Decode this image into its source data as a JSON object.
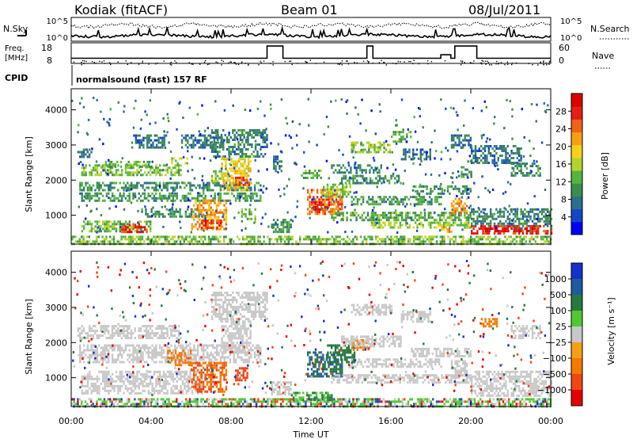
{
  "header": {
    "station": "Kodiak (fitACF)",
    "beam": "Beam 01",
    "date": "08/Jul/2011"
  },
  "chart_data": [
    {
      "type": "line",
      "panel": "noise",
      "left_label": "N.Sky",
      "right_label": "N.Search",
      "left_ticks": [
        "10^5",
        "10^0"
      ],
      "right_ticks": [
        "10^5",
        "10^0"
      ],
      "log_scale": true
    },
    {
      "type": "line",
      "panel": "frequency-nave",
      "left_label_line1": "Freq.",
      "left_label_line2": "[MHz]",
      "right_label": "Nave",
      "left_ticks": [
        18,
        8
      ],
      "right_ticks": [
        60,
        0
      ],
      "freq_ylim": [
        8,
        18
      ],
      "nave_ylim": [
        0,
        60
      ],
      "freq_high_intervals_h": [
        [
          9.8,
          10.6
        ],
        [
          14.8,
          15.1
        ],
        [
          18.5,
          19.0
        ],
        [
          19.2,
          20.3
        ]
      ]
    },
    {
      "type": "table",
      "panel": "cpid",
      "label": "CPID",
      "program": "normalsound (fast) 157 RF"
    },
    {
      "type": "heatmap",
      "panel": "power",
      "ylabel": "Slant Range [km]",
      "yticks": [
        1000,
        2000,
        3000,
        4000
      ],
      "ylim": [
        180,
        4600
      ],
      "xlim_h": [
        0,
        24
      ],
      "colorbar": {
        "label": "Power [dB]",
        "ticks": [
          4,
          8,
          12,
          16,
          20,
          24,
          28
        ],
        "range": [
          0,
          32
        ],
        "colors": [
          "#0000ff",
          "#1446c8",
          "#2d6e8c",
          "#3c8c4b",
          "#55b43c",
          "#b4d22d",
          "#f5d219",
          "#f5a014",
          "#f06414",
          "#e61e14",
          "#dc0000"
        ]
      },
      "echo_regions": [
        {
          "t": [
            0.0,
            24.0
          ],
          "r": [
            180,
            420
          ],
          "v": 14
        },
        {
          "t": [
            0.3,
            1.0
          ],
          "r": [
            2650,
            2900
          ],
          "v": 8
        },
        {
          "t": [
            0.5,
            5.5
          ],
          "r": [
            2150,
            2450
          ],
          "v": 14
        },
        {
          "t": [
            1.5,
            4.0
          ],
          "r": [
            2350,
            2550
          ],
          "v": 12
        },
        {
          "t": [
            0.4,
            9.5
          ],
          "r": [
            1700,
            1950
          ],
          "v": 10
        },
        {
          "t": [
            0.4,
            9.5
          ],
          "r": [
            1400,
            1650
          ],
          "v": 11
        },
        {
          "t": [
            0.5,
            4.0
          ],
          "r": [
            550,
            850
          ],
          "v": 14
        },
        {
          "t": [
            2.5,
            3.8
          ],
          "r": [
            520,
            760
          ],
          "v": 27
        },
        {
          "t": [
            3.5,
            6.5
          ],
          "r": [
            950,
            1200
          ],
          "v": 10
        },
        {
          "t": [
            3.0,
            4.8
          ],
          "r": [
            2900,
            3300
          ],
          "v": 8
        },
        {
          "t": [
            5.0,
            5.8
          ],
          "r": [
            2500,
            2650
          ],
          "v": 16
        },
        {
          "t": [
            5.5,
            7.5
          ],
          "r": [
            2900,
            3300
          ],
          "v": 8
        },
        {
          "t": [
            6.0,
            7.8
          ],
          "r": [
            600,
            1450
          ],
          "v": 22
        },
        {
          "t": [
            6.5,
            7.5
          ],
          "r": [
            620,
            880
          ],
          "v": 27
        },
        {
          "t": [
            7.0,
            7.6
          ],
          "r": [
            2000,
            2350
          ],
          "v": 16
        },
        {
          "t": [
            7.5,
            9.0
          ],
          "r": [
            1750,
            2700
          ],
          "v": 19
        },
        {
          "t": [
            8.2,
            8.9
          ],
          "r": [
            1850,
            2100
          ],
          "v": 26
        },
        {
          "t": [
            7.0,
            9.8
          ],
          "r": [
            2700,
            3450
          ],
          "v": 9
        },
        {
          "t": [
            8.5,
            9.2
          ],
          "r": [
            850,
            1200
          ],
          "v": 14
        },
        {
          "t": [
            10.1,
            10.5
          ],
          "r": [
            2250,
            2700
          ],
          "v": 8
        },
        {
          "t": [
            10.0,
            11.0
          ],
          "r": [
            500,
            900
          ],
          "v": 10
        },
        {
          "t": [
            11.5,
            12.5
          ],
          "r": [
            2050,
            2300
          ],
          "v": 12
        },
        {
          "t": [
            11.8,
            13.6
          ],
          "r": [
            1050,
            1750
          ],
          "v": 24
        },
        {
          "t": [
            12.0,
            13.0
          ],
          "r": [
            1100,
            1400
          ],
          "v": 28
        },
        {
          "t": [
            12.5,
            14.0
          ],
          "r": [
            1500,
            1900
          ],
          "v": 15
        },
        {
          "t": [
            13.5,
            16.5
          ],
          "r": [
            1900,
            2150
          ],
          "v": 10
        },
        {
          "t": [
            13.0,
            15.5
          ],
          "r": [
            2200,
            2450
          ],
          "v": 9
        },
        {
          "t": [
            14.0,
            16.0
          ],
          "r": [
            2800,
            3100
          ],
          "v": 15
        },
        {
          "t": [
            16.0,
            17.0
          ],
          "r": [
            3100,
            3400
          ],
          "v": 12
        },
        {
          "t": [
            16.5,
            18.0
          ],
          "r": [
            2600,
            2900
          ],
          "v": 8
        },
        {
          "t": [
            14.0,
            18.5
          ],
          "r": [
            1300,
            1550
          ],
          "v": 11
        },
        {
          "t": [
            13.0,
            20.0
          ],
          "r": [
            850,
            1100
          ],
          "v": 12
        },
        {
          "t": [
            17.0,
            20.0
          ],
          "r": [
            1600,
            1850
          ],
          "v": 10
        },
        {
          "t": [
            15.0,
            20.0
          ],
          "r": [
            620,
            820
          ],
          "v": 15
        },
        {
          "t": [
            18.5,
            19.0
          ],
          "r": [
            520,
            700
          ],
          "v": 22
        },
        {
          "t": [
            19.0,
            19.8
          ],
          "r": [
            1050,
            1500
          ],
          "v": 22
        },
        {
          "t": [
            19.5,
            20.0
          ],
          "r": [
            2100,
            2400
          ],
          "v": 10
        },
        {
          "t": [
            19.0,
            20.0
          ],
          "r": [
            2900,
            3300
          ],
          "v": 7
        },
        {
          "t": [
            20.0,
            22.5
          ],
          "r": [
            2500,
            3000
          ],
          "v": 8
        },
        {
          "t": [
            22.0,
            23.5
          ],
          "r": [
            2150,
            2500
          ],
          "v": 10
        },
        {
          "t": [
            20.0,
            24.0
          ],
          "r": [
            700,
            1200
          ],
          "v": 9
        },
        {
          "t": [
            20.0,
            24.0
          ],
          "r": [
            500,
            720
          ],
          "v": 28
        },
        {
          "t": [
            20.6,
            22.8
          ],
          "r": [
            550,
            650
          ],
          "v": 31
        }
      ]
    },
    {
      "type": "heatmap",
      "panel": "velocity",
      "ylabel": "Slant Range [km]",
      "yticks": [
        1000,
        2000,
        3000,
        4000
      ],
      "ylim": [
        180,
        4600
      ],
      "xlim_h": [
        0,
        24
      ],
      "xticks": [
        "00:00",
        "04:00",
        "08:00",
        "12:00",
        "16:00",
        "20:00",
        "00:00"
      ],
      "xlabel": "Time UT",
      "colorbar": {
        "label": "Velocity [m s⁻¹]",
        "ticks": [
          "1000",
          "500",
          "100",
          "25",
          "−25",
          "−100",
          "−500",
          "−1000"
        ],
        "colors": [
          "#1432c8",
          "#1e5aa0",
          "#287840",
          "#50c832",
          "#c8c8c8",
          "#f5a014",
          "#f57800",
          "#f04614",
          "#e60000"
        ]
      },
      "echo_regions": [
        {
          "t": [
            0.0,
            24.0
          ],
          "r": [
            180,
            420
          ],
          "v": 30
        },
        {
          "t": [
            0.3,
            5.5
          ],
          "r": [
            2150,
            2500
          ],
          "v": 0
        },
        {
          "t": [
            0.4,
            9.5
          ],
          "r": [
            1450,
            1950
          ],
          "v": 0
        },
        {
          "t": [
            0.5,
            6.5
          ],
          "r": [
            550,
            1200
          ],
          "v": 0
        },
        {
          "t": [
            7.0,
            9.8
          ],
          "r": [
            2700,
            3450
          ],
          "v": 0
        },
        {
          "t": [
            4.8,
            6.0
          ],
          "r": [
            1350,
            1800
          ],
          "v": -180
        },
        {
          "t": [
            6.0,
            7.8
          ],
          "r": [
            600,
            1450
          ],
          "v": -300
        },
        {
          "t": [
            7.5,
            9.0
          ],
          "r": [
            1750,
            2700
          ],
          "v": 0
        },
        {
          "t": [
            8.2,
            8.8
          ],
          "r": [
            900,
            1300
          ],
          "v": -400
        },
        {
          "t": [
            10.0,
            11.0
          ],
          "r": [
            500,
            900
          ],
          "v": 0
        },
        {
          "t": [
            11.8,
            13.6
          ],
          "r": [
            1050,
            1750
          ],
          "v": 300
        },
        {
          "t": [
            12.8,
            14.2
          ],
          "r": [
            1450,
            1950
          ],
          "v": 200
        },
        {
          "t": [
            14.0,
            14.8
          ],
          "r": [
            1800,
            2100
          ],
          "v": -150
        },
        {
          "t": [
            13.5,
            16.5
          ],
          "r": [
            1900,
            2200
          ],
          "v": 0
        },
        {
          "t": [
            14.0,
            16.0
          ],
          "r": [
            2800,
            3100
          ],
          "v": 0
        },
        {
          "t": [
            14.0,
            18.5
          ],
          "r": [
            1300,
            1550
          ],
          "v": 0
        },
        {
          "t": [
            13.0,
            20.0
          ],
          "r": [
            850,
            1100
          ],
          "v": 0
        },
        {
          "t": [
            17.0,
            20.0
          ],
          "r": [
            1600,
            1850
          ],
          "v": 0
        },
        {
          "t": [
            16.5,
            18.0
          ],
          "r": [
            2600,
            2900
          ],
          "v": 0
        },
        {
          "t": [
            11.0,
            13.0
          ],
          "r": [
            350,
            600
          ],
          "v": 60
        },
        {
          "t": [
            20.0,
            24.0
          ],
          "r": [
            500,
            1200
          ],
          "v": 0
        },
        {
          "t": [
            22.0,
            23.5
          ],
          "r": [
            2150,
            2500
          ],
          "v": 0
        },
        {
          "t": [
            20.5,
            21.3
          ],
          "r": [
            2450,
            2700
          ],
          "v": -200
        },
        {
          "t": [
            19.0,
            19.8
          ],
          "r": [
            1050,
            1500
          ],
          "v": 0
        }
      ]
    }
  ]
}
